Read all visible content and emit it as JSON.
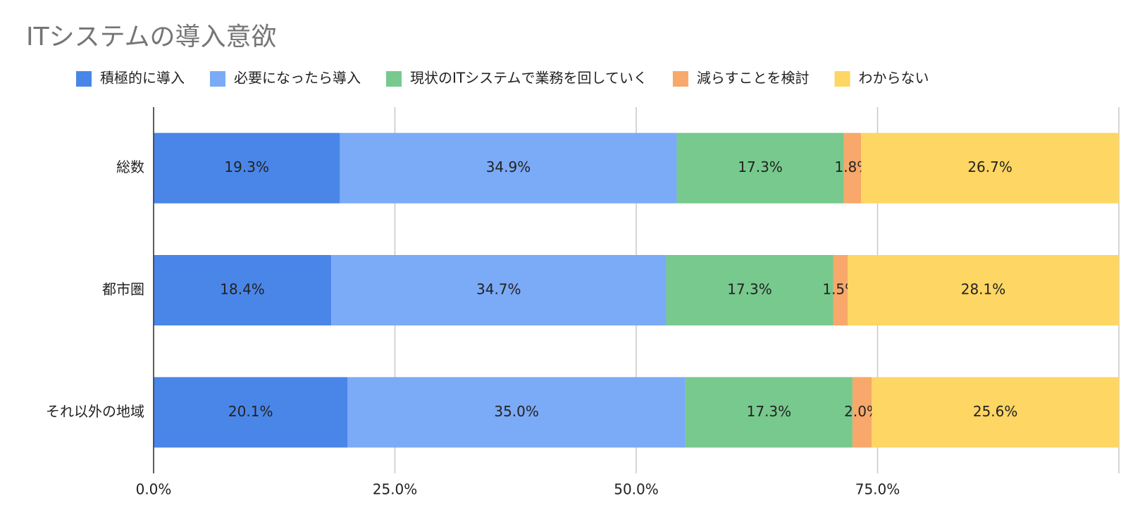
{
  "chart_data": {
    "type": "stacked-bar-horizontal",
    "title": "ITシステムの導入意欲",
    "categories": [
      "総数",
      "都市圏",
      "それ以外の地域"
    ],
    "series": [
      {
        "name": "積極的に導入",
        "color": "#4a86e8",
        "label_color": "#ffffff",
        "values": [
          19.3,
          18.4,
          20.1
        ],
        "value_labels": [
          "19.3%",
          "18.4%",
          "20.1%"
        ]
      },
      {
        "name": "必要になったら導入",
        "color": "#7baaf7",
        "label_color": "#000000",
        "values": [
          34.9,
          34.7,
          35.0
        ],
        "value_labels": [
          "34.9%",
          "34.7%",
          "35.0%"
        ]
      },
      {
        "name": "現状のITシステムで業務を回していく",
        "color": "#77c98d",
        "label_color": "#000000",
        "values": [
          17.3,
          17.3,
          17.3
        ],
        "value_labels": [
          "17.3%",
          "17.3%",
          "17.3%"
        ]
      },
      {
        "name": "減らすことを検討",
        "color": "#f7a86a",
        "label_color": "#000000",
        "values": [
          1.8,
          1.5,
          2.0
        ],
        "value_labels": [
          "1.8%",
          "1.5%",
          "2.0%"
        ]
      },
      {
        "name": "わからない",
        "color": "#fdd663",
        "label_color": "#000000",
        "values": [
          26.7,
          28.1,
          25.6
        ],
        "value_labels": [
          "26.7%",
          "28.1%",
          "25.6%"
        ]
      }
    ],
    "xlim": [
      0,
      100
    ],
    "xticks": [
      {
        "value": 0,
        "label": "0.0%"
      },
      {
        "value": 25,
        "label": "25.0%"
      },
      {
        "value": 50,
        "label": "50.0%"
      },
      {
        "value": 75,
        "label": "75.0%"
      }
    ],
    "grid": true,
    "legend": "top"
  }
}
